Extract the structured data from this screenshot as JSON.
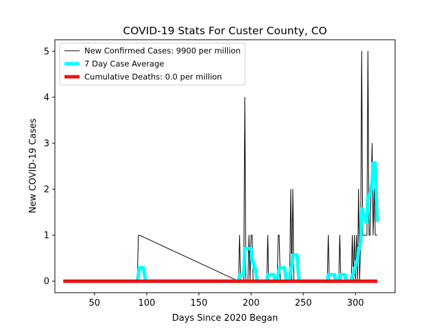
{
  "chart_data": {
    "type": "line",
    "title": "COVID-19 Stats For Custer County, CO",
    "xlabel": "Days Since 2020 Began",
    "ylabel": "New COVID-19 Cases",
    "xlim": [
      12,
      338
    ],
    "ylim": [
      -0.25,
      5.25
    ],
    "xticks": [
      50,
      100,
      150,
      200,
      250,
      300
    ],
    "yticks": [
      0,
      1,
      2,
      3,
      4,
      5
    ],
    "grid": false,
    "legend_position": "top-left",
    "series": [
      {
        "name": "New Confirmed Cases: 9900 per million",
        "color": "#000000",
        "x": [
          20,
          91,
          92,
          93,
          188,
          189,
          190,
          193,
          194,
          195,
          197,
          198,
          199,
          200,
          201,
          202,
          215,
          216,
          217,
          225,
          226,
          227,
          228,
          237,
          238,
          239,
          240,
          241,
          242,
          273,
          274,
          275,
          284,
          285,
          286,
          296,
          297,
          298,
          299,
          300,
          301,
          302,
          303,
          304,
          305,
          306,
          307,
          308,
          309,
          310,
          311,
          312,
          313,
          314,
          315,
          316,
          317,
          318,
          319,
          320,
          321
        ],
        "y": [
          0,
          0,
          1,
          1,
          0,
          1,
          0,
          0,
          4,
          0,
          0,
          1,
          0,
          1,
          1,
          0,
          0,
          1,
          0,
          0,
          1,
          1,
          0,
          0,
          2,
          0,
          2,
          0,
          0,
          0,
          1,
          0,
          0,
          1,
          0,
          0,
          1,
          0,
          1,
          0,
          1,
          0,
          2,
          0,
          1,
          5,
          1,
          1,
          1,
          1,
          1,
          5,
          1,
          1,
          2,
          3,
          1,
          2,
          1,
          1,
          1
        ]
      },
      {
        "name": "7 Day Case Average",
        "color": "#00ffff",
        "x": [
          90,
          91,
          92,
          93,
          94,
          95,
          96,
          97,
          98,
          99,
          100,
          188,
          189,
          190,
          191,
          192,
          193,
          194,
          195,
          196,
          197,
          198,
          199,
          200,
          201,
          202,
          203,
          204,
          205,
          206,
          207,
          214,
          215,
          216,
          217,
          218,
          219,
          220,
          221,
          222,
          223,
          224,
          225,
          226,
          227,
          228,
          229,
          230,
          231,
          232,
          233,
          234,
          235,
          236,
          237,
          238,
          239,
          240,
          241,
          242,
          243,
          244,
          245,
          246,
          272,
          273,
          274,
          275,
          276,
          277,
          278,
          279,
          280,
          281,
          282,
          283,
          284,
          285,
          286,
          287,
          288,
          289,
          290,
          291,
          295,
          296,
          297,
          298,
          299,
          300,
          301,
          302,
          303,
          304,
          305,
          306,
          307,
          308,
          309,
          310,
          311,
          312,
          313,
          314,
          315,
          316,
          317,
          318,
          319,
          320,
          321
        ],
        "y": [
          0,
          0,
          0.14,
          0.29,
          0.29,
          0.29,
          0.29,
          0.29,
          0.14,
          0,
          0,
          0,
          0.14,
          0.14,
          0.14,
          0.14,
          0.14,
          0.71,
          0.71,
          0.71,
          0.71,
          0.71,
          0.71,
          0.71,
          0.43,
          0.43,
          0.29,
          0.29,
          0.14,
          0,
          0,
          0,
          0,
          0.14,
          0.14,
          0.14,
          0.14,
          0.14,
          0.14,
          0.14,
          0,
          0,
          0,
          0.14,
          0.29,
          0.29,
          0.29,
          0.29,
          0.29,
          0.29,
          0.14,
          0,
          0,
          0,
          0,
          0.29,
          0.29,
          0.57,
          0.57,
          0.57,
          0.57,
          0.57,
          0.29,
          0,
          0,
          0,
          0.14,
          0.14,
          0.14,
          0.14,
          0.14,
          0.14,
          0.14,
          0,
          0,
          0,
          0,
          0.14,
          0.14,
          0.14,
          0.14,
          0.14,
          0.14,
          0,
          0,
          0,
          0.14,
          0.14,
          0.29,
          0.29,
          0.43,
          0.43,
          0.71,
          0.71,
          0.86,
          1.57,
          1.57,
          1.43,
          1.43,
          1.29,
          1.29,
          1.86,
          1.86,
          1.86,
          2.0,
          2.14,
          2.57,
          2.57,
          2.57,
          1.86,
          1.29
        ]
      },
      {
        "name": "Cumulative Deaths: 0.0 per million",
        "color": "#ee1111",
        "x": [
          20,
          321
        ],
        "y": [
          0,
          0
        ]
      }
    ]
  }
}
